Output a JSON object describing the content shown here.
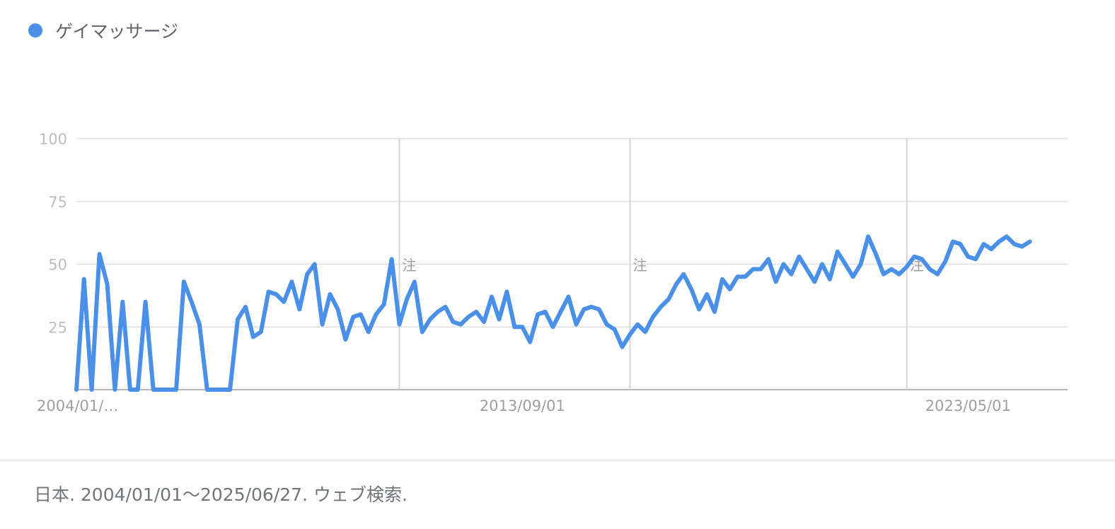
{
  "legend": {
    "label": "ゲイマッサージ",
    "color": "#4a90e8"
  },
  "footer": {
    "text": "日本. 2004/01/01～2025/06/27. ウェブ検索."
  },
  "chart_data": {
    "type": "line",
    "title": "",
    "xlabel": "",
    "ylabel": "",
    "ylim": [
      0,
      100
    ],
    "yticks": [
      25,
      50,
      75,
      100
    ],
    "grid": true,
    "x_range": [
      "2004/01/01",
      "2025/06/27"
    ],
    "x_tick_labels": [
      {
        "date": "2004/01/01",
        "label": "2004/01/…"
      },
      {
        "date": "2013/09/01",
        "label": "2013/09/01"
      },
      {
        "date": "2023/05/01",
        "label": "2023/05/01"
      }
    ],
    "annotations": [
      {
        "date": "2011/01/01",
        "label": "注"
      },
      {
        "date": "2016/01/01",
        "label": "注"
      },
      {
        "date": "2022/01/01",
        "label": "注"
      }
    ],
    "series": [
      {
        "name": "ゲイマッサージ",
        "color": "#4a90e8",
        "points": [
          [
            "2004/01/01",
            0
          ],
          [
            "2004/03/01",
            44
          ],
          [
            "2004/05/01",
            0
          ],
          [
            "2004/07/01",
            54
          ],
          [
            "2004/09/01",
            42
          ],
          [
            "2004/11/01",
            0
          ],
          [
            "2005/01/01",
            35
          ],
          [
            "2005/03/01",
            0
          ],
          [
            "2005/05/01",
            0
          ],
          [
            "2005/07/01",
            35
          ],
          [
            "2005/09/01",
            0
          ],
          [
            "2005/11/01",
            0
          ],
          [
            "2006/01/01",
            0
          ],
          [
            "2006/03/01",
            0
          ],
          [
            "2006/05/01",
            43
          ],
          [
            "2006/07/01",
            35
          ],
          [
            "2006/09/01",
            26
          ],
          [
            "2006/11/01",
            0
          ],
          [
            "2007/01/01",
            0
          ],
          [
            "2007/03/01",
            0
          ],
          [
            "2007/05/01",
            0
          ],
          [
            "2007/07/01",
            28
          ],
          [
            "2007/09/01",
            33
          ],
          [
            "2007/11/01",
            21
          ],
          [
            "2008/01/01",
            23
          ],
          [
            "2008/03/01",
            39
          ],
          [
            "2008/05/01",
            38
          ],
          [
            "2008/07/01",
            35
          ],
          [
            "2008/09/01",
            43
          ],
          [
            "2008/11/01",
            32
          ],
          [
            "2009/01/01",
            46
          ],
          [
            "2009/03/01",
            50
          ],
          [
            "2009/05/01",
            26
          ],
          [
            "2009/07/01",
            38
          ],
          [
            "2009/09/01",
            32
          ],
          [
            "2009/11/01",
            20
          ],
          [
            "2010/01/01",
            29
          ],
          [
            "2010/03/01",
            30
          ],
          [
            "2010/05/01",
            23
          ],
          [
            "2010/07/01",
            30
          ],
          [
            "2010/09/01",
            34
          ],
          [
            "2010/11/01",
            52
          ],
          [
            "2011/01/01",
            26
          ],
          [
            "2011/03/01",
            36
          ],
          [
            "2011/05/01",
            43
          ],
          [
            "2011/07/01",
            23
          ],
          [
            "2011/09/01",
            28
          ],
          [
            "2011/11/01",
            31
          ],
          [
            "2012/01/01",
            33
          ],
          [
            "2012/03/01",
            27
          ],
          [
            "2012/05/01",
            26
          ],
          [
            "2012/07/01",
            29
          ],
          [
            "2012/09/01",
            31
          ],
          [
            "2012/11/01",
            27
          ],
          [
            "2013/01/01",
            37
          ],
          [
            "2013/03/01",
            28
          ],
          [
            "2013/05/01",
            39
          ],
          [
            "2013/07/01",
            25
          ],
          [
            "2013/09/01",
            25
          ],
          [
            "2013/11/01",
            19
          ],
          [
            "2014/01/01",
            30
          ],
          [
            "2014/03/01",
            31
          ],
          [
            "2014/05/01",
            25
          ],
          [
            "2014/07/01",
            31
          ],
          [
            "2014/09/01",
            37
          ],
          [
            "2014/11/01",
            26
          ],
          [
            "2015/01/01",
            32
          ],
          [
            "2015/03/01",
            33
          ],
          [
            "2015/05/01",
            32
          ],
          [
            "2015/07/01",
            26
          ],
          [
            "2015/09/01",
            24
          ],
          [
            "2015/11/01",
            17
          ],
          [
            "2016/01/01",
            22
          ],
          [
            "2016/03/01",
            26
          ],
          [
            "2016/05/01",
            23
          ],
          [
            "2016/07/01",
            29
          ],
          [
            "2016/09/01",
            33
          ],
          [
            "2016/11/01",
            36
          ],
          [
            "2017/01/01",
            42
          ],
          [
            "2017/03/01",
            46
          ],
          [
            "2017/05/01",
            40
          ],
          [
            "2017/07/01",
            32
          ],
          [
            "2017/09/01",
            38
          ],
          [
            "2017/11/01",
            31
          ],
          [
            "2018/01/01",
            44
          ],
          [
            "2018/03/01",
            40
          ],
          [
            "2018/05/01",
            45
          ],
          [
            "2018/07/01",
            45
          ],
          [
            "2018/09/01",
            48
          ],
          [
            "2018/11/01",
            48
          ],
          [
            "2019/01/01",
            52
          ],
          [
            "2019/03/01",
            43
          ],
          [
            "2019/05/01",
            50
          ],
          [
            "2019/07/01",
            46
          ],
          [
            "2019/09/01",
            53
          ],
          [
            "2019/11/01",
            48
          ],
          [
            "2020/01/01",
            43
          ],
          [
            "2020/03/01",
            50
          ],
          [
            "2020/05/01",
            44
          ],
          [
            "2020/07/01",
            55
          ],
          [
            "2020/09/01",
            50
          ],
          [
            "2020/11/01",
            45
          ],
          [
            "2021/01/01",
            50
          ],
          [
            "2021/03/01",
            61
          ],
          [
            "2021/05/01",
            54
          ],
          [
            "2021/07/01",
            46
          ],
          [
            "2021/09/01",
            48
          ],
          [
            "2021/11/01",
            46
          ],
          [
            "2022/01/01",
            49
          ],
          [
            "2022/03/01",
            53
          ],
          [
            "2022/05/01",
            52
          ],
          [
            "2022/07/01",
            48
          ],
          [
            "2022/09/01",
            46
          ],
          [
            "2022/11/01",
            51
          ],
          [
            "2023/01/01",
            59
          ],
          [
            "2023/03/01",
            58
          ],
          [
            "2023/05/01",
            53
          ],
          [
            "2023/07/01",
            52
          ],
          [
            "2023/09/01",
            58
          ],
          [
            "2023/11/01",
            56
          ],
          [
            "2024/01/01",
            59
          ],
          [
            "2024/03/01",
            61
          ],
          [
            "2024/05/01",
            58
          ],
          [
            "2024/07/01",
            57
          ],
          [
            "2024/09/01",
            59
          ]
        ]
      }
    ]
  }
}
